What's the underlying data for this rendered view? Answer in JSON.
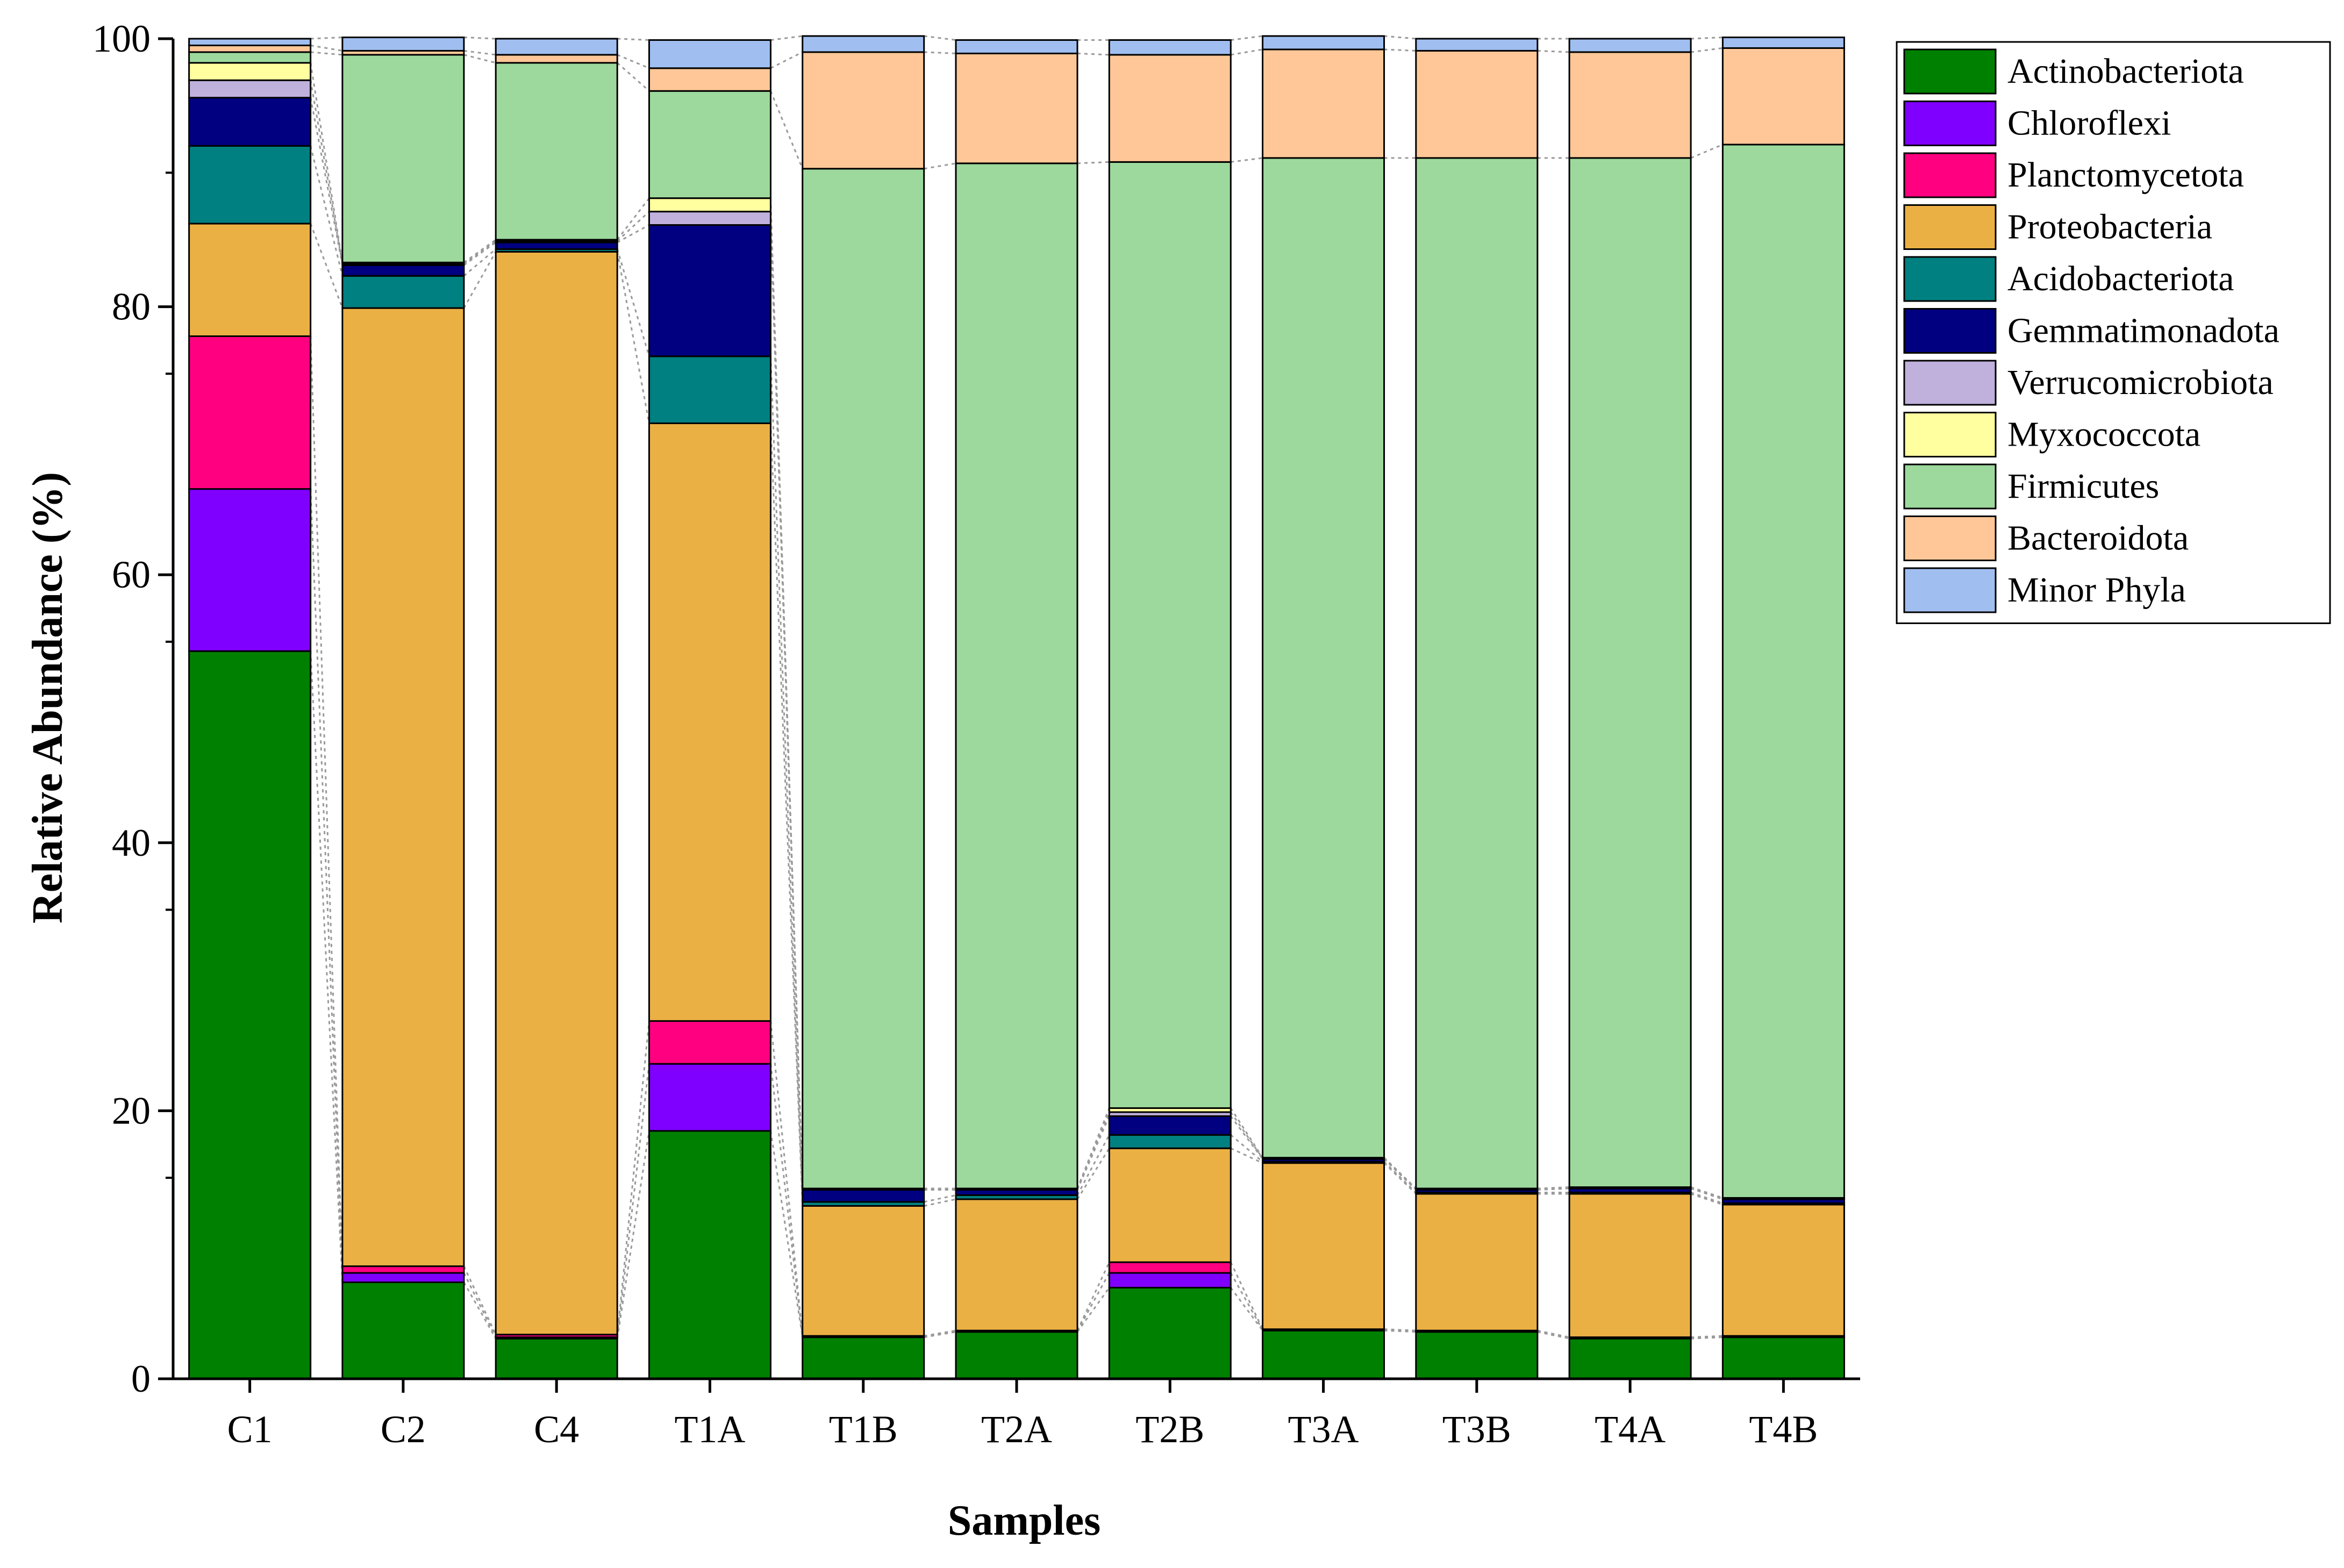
{
  "chart_data": {
    "type": "bar",
    "stacked": true,
    "title": "",
    "xlabel": "Samples",
    "ylabel": "Relative Abundance (%)",
    "ylim": [
      0,
      100
    ],
    "yticks": [
      "0",
      "20",
      "40",
      "60",
      "80",
      "100"
    ],
    "legend_position": "top-right (outside plot)",
    "categories": [
      "C1",
      "C2",
      "C4",
      "T1A",
      "T1B",
      "T2A",
      "T2B",
      "T3A",
      "T3B",
      "T4A",
      "T4B"
    ],
    "series": [
      {
        "name": "Actinobacteriota",
        "color": "#008000",
        "values": [
          54.3,
          7.2,
          3.0,
          18.5,
          3.1,
          3.5,
          6.8,
          3.6,
          3.5,
          3.0,
          3.1
        ]
      },
      {
        "name": "Chloroflexi",
        "color": "#8000FF",
        "values": [
          12.1,
          0.7,
          0.1,
          5.0,
          0.05,
          0.05,
          1.1,
          0.05,
          0.05,
          0.05,
          0.05
        ]
      },
      {
        "name": "Planctomycetota",
        "color": "#FF0080",
        "values": [
          11.4,
          0.5,
          0.2,
          3.2,
          0.05,
          0.05,
          0.8,
          0.05,
          0.05,
          0.05,
          0.05
        ]
      },
      {
        "name": "Proteobacteria",
        "color": "#EBB044",
        "values": [
          8.4,
          71.5,
          80.8,
          44.6,
          9.7,
          9.8,
          8.5,
          12.4,
          10.2,
          10.7,
          9.8
        ]
      },
      {
        "name": "Acidobacteriota",
        "color": "#008080",
        "values": [
          5.8,
          2.4,
          0.2,
          5.0,
          0.3,
          0.3,
          1.0,
          0.1,
          0.1,
          0.1,
          0.1
        ]
      },
      {
        "name": "Gemmatimonadota",
        "color": "#000080",
        "values": [
          3.6,
          0.8,
          0.5,
          9.8,
          0.9,
          0.4,
          1.4,
          0.2,
          0.2,
          0.3,
          0.3
        ]
      },
      {
        "name": "Verrucomicrobiota",
        "color": "#C0B0DC",
        "values": [
          1.3,
          0.1,
          0.1,
          1.0,
          0.05,
          0.05,
          0.3,
          0.05,
          0.05,
          0.05,
          0.05
        ]
      },
      {
        "name": "Myxococcota",
        "color": "#FFFFA0",
        "values": [
          1.3,
          0.1,
          0.1,
          1.0,
          0.05,
          0.05,
          0.3,
          0.05,
          0.05,
          0.05,
          0.05
        ]
      },
      {
        "name": "Firmicutes",
        "color": "#9DD99D",
        "values": [
          0.8,
          15.5,
          13.2,
          8.0,
          76.1,
          76.5,
          70.6,
          74.6,
          76.9,
          76.8,
          78.6
        ]
      },
      {
        "name": "Bacteroidota",
        "color": "#FFC797",
        "values": [
          0.5,
          0.3,
          0.6,
          1.7,
          8.7,
          8.2,
          8.0,
          8.1,
          8.0,
          7.9,
          7.2
        ]
      },
      {
        "name": "Minor Phyla",
        "color": "#A0BEF0",
        "values": [
          0.5,
          1.0,
          1.2,
          2.1,
          1.2,
          1.0,
          1.1,
          1.0,
          0.9,
          1.0,
          0.8
        ]
      }
    ]
  }
}
